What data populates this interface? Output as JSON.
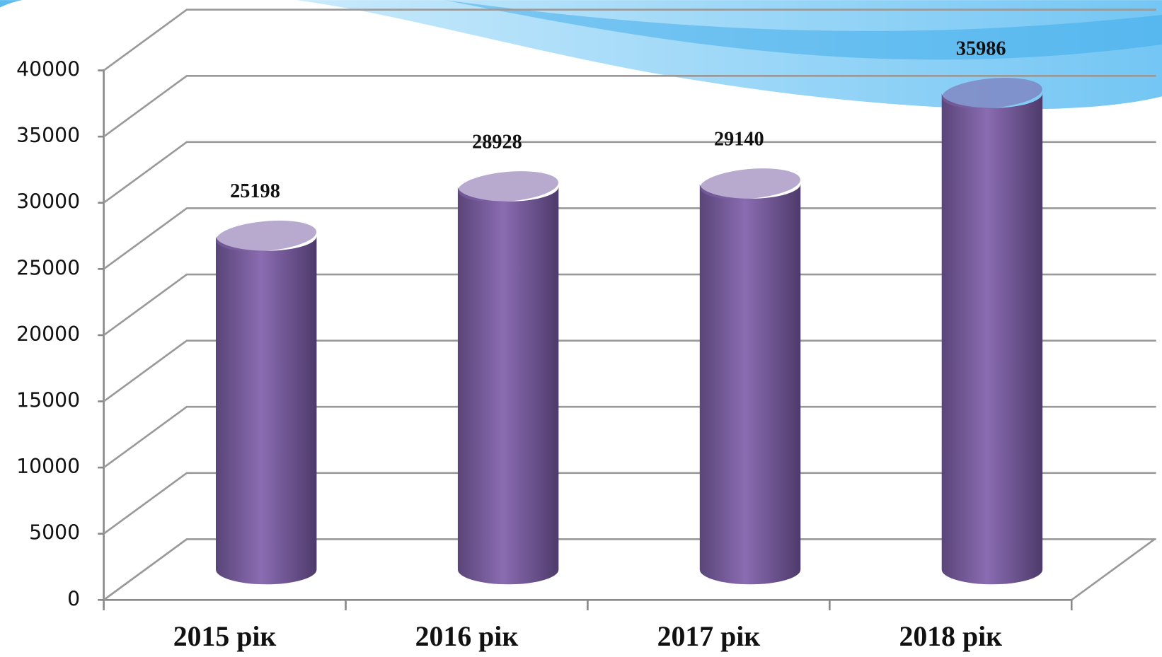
{
  "chart_data": {
    "type": "bar",
    "categories": [
      "2015 рік",
      "2016 рік",
      "2017 рік",
      "2018 рік"
    ],
    "values": [
      25198,
      28928,
      29140,
      35986
    ],
    "color": "#7e62a8",
    "ylim": [
      0,
      40000
    ],
    "yticks": [
      0,
      5000,
      10000,
      15000,
      20000,
      25000,
      30000,
      35000,
      40000
    ],
    "grid": true
  }
}
